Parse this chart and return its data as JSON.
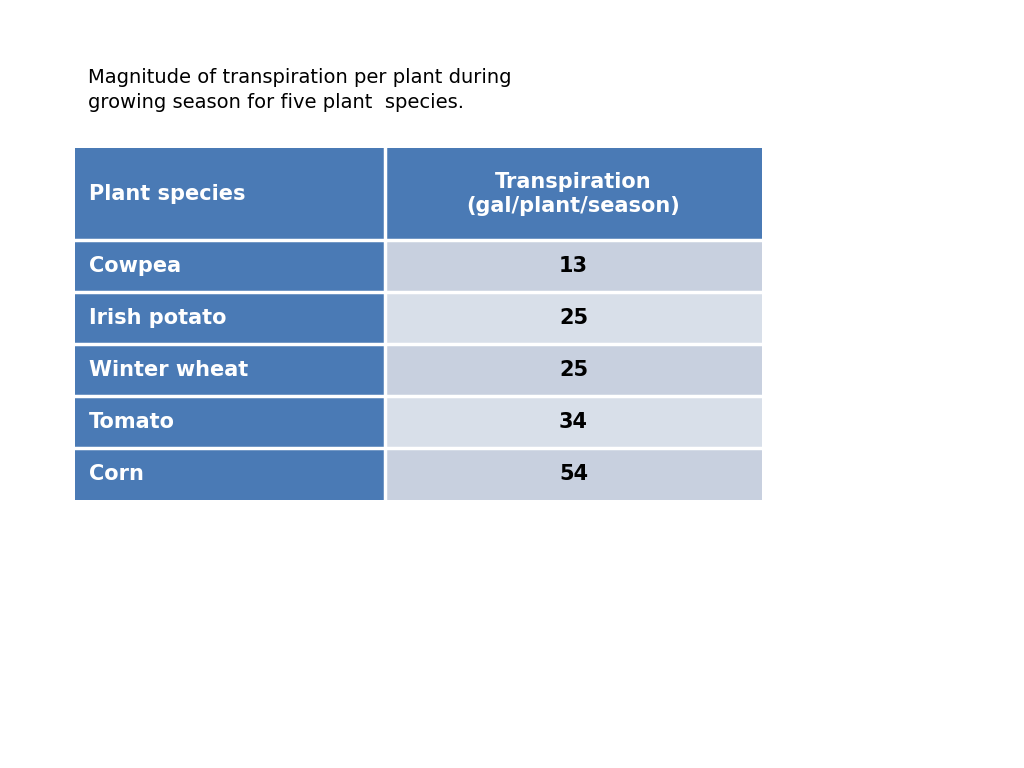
{
  "title_line1": "Magnitude of transpiration per plant during",
  "title_line2": "growing season for five plant  species.",
  "header": [
    "Plant species",
    "Transpiration\n(gal/plant/season)"
  ],
  "rows": [
    [
      "Cowpea",
      "13"
    ],
    [
      "Irish potato",
      "25"
    ],
    [
      "Winter wheat",
      "25"
    ],
    [
      "Tomato",
      "34"
    ],
    [
      "Corn",
      "54"
    ]
  ],
  "header_bg": "#4a7ab5",
  "row_left_bg": "#4a7ab5",
  "row_right_bg_odd": "#c8d0df",
  "row_right_bg_even": "#d8dfe9",
  "header_text_color": "#ffffff",
  "row_left_text_color": "#ffffff",
  "row_right_text_color": "#000000",
  "title_color": "#000000",
  "background_color": "#ffffff",
  "title_fontsize": 14,
  "header_fontsize": 15,
  "cell_fontsize": 15,
  "divider_color": "#ffffff",
  "divider_linewidth": 2.5
}
